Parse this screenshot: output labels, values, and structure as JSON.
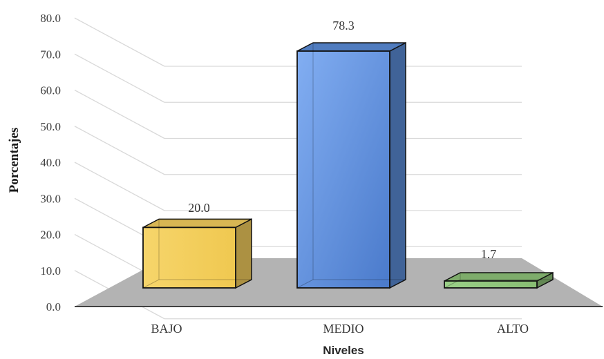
{
  "chart_data": {
    "type": "bar",
    "categories": [
      "BAJO",
      "MEDIO",
      "ALTO"
    ],
    "values": [
      20.0,
      78.3,
      1.7
    ],
    "data_labels": [
      "20.0",
      "78.3",
      "1.7"
    ],
    "xlabel": "Niveles",
    "ylabel": "Porcentajes",
    "ylim": [
      0,
      80
    ],
    "yticks": [
      "0.0",
      "10.0",
      "20.0",
      "30.0",
      "40.0",
      "50.0",
      "60.0",
      "70.0",
      "80.0"
    ],
    "grid": true,
    "three_d": true,
    "bar_colors": [
      "#F5CF5E",
      "#5B8DD9",
      "#8FC47A"
    ],
    "floor_color": "#B3B3B3"
  }
}
